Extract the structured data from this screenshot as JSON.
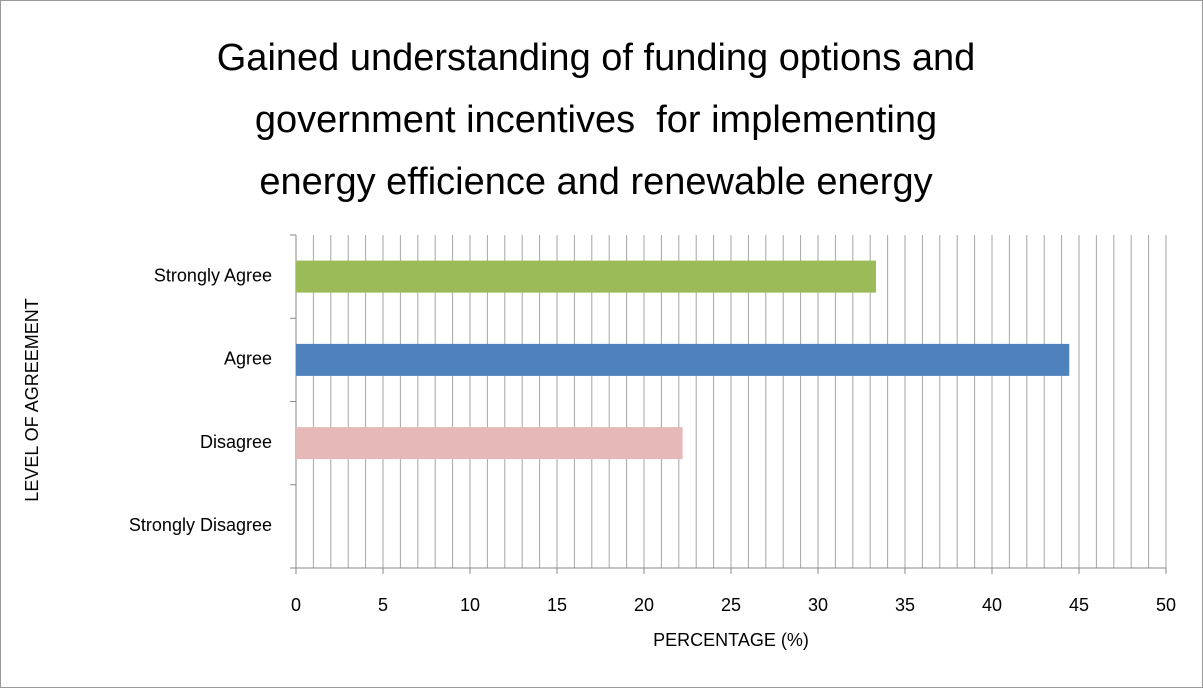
{
  "chart_data": {
    "type": "bar",
    "orientation": "horizontal",
    "title": [
      "Gained understanding of funding options and",
      "government incentives  for implementing",
      "energy efficience and renewable energy"
    ],
    "xlabel": "PERCENTAGE (%)",
    "ylabel": "LEVEL OF AGREEMENT",
    "categories": [
      "Strongly Agree",
      "Agree",
      "Disagree",
      "Strongly Disagree"
    ],
    "values": [
      33.33,
      44.44,
      22.22,
      0
    ],
    "colors": [
      "#9bbb59",
      "#4f81bd",
      "#e6b9b8",
      "#c0504d"
    ],
    "xlim": [
      0,
      50
    ],
    "xticks": [
      0,
      5,
      10,
      15,
      20,
      25,
      30,
      35,
      40,
      45,
      50
    ],
    "grid": true,
    "xminor": 1
  }
}
